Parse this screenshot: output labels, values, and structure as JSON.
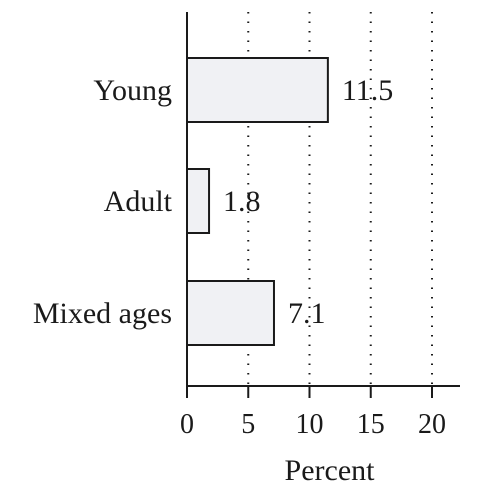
{
  "chart_data": {
    "type": "bar",
    "orientation": "horizontal",
    "categories": [
      "Young",
      "Adult",
      "Mixed ages"
    ],
    "values": [
      11.5,
      1.8,
      7.1
    ],
    "value_labels": [
      "11.5",
      "1.8",
      "7.1"
    ],
    "xlabel": "Percent",
    "ylabel": "",
    "title": "",
    "xlim": [
      0,
      22.5
    ],
    "xticks": [
      0,
      5,
      10,
      15,
      20
    ],
    "xtick_labels": [
      "0",
      "5",
      "10",
      "15",
      "20"
    ],
    "grid": "vertical dotted",
    "legend": "none",
    "bar_fill": "#f0f1f4",
    "bar_stroke": "#1a1a1a"
  }
}
